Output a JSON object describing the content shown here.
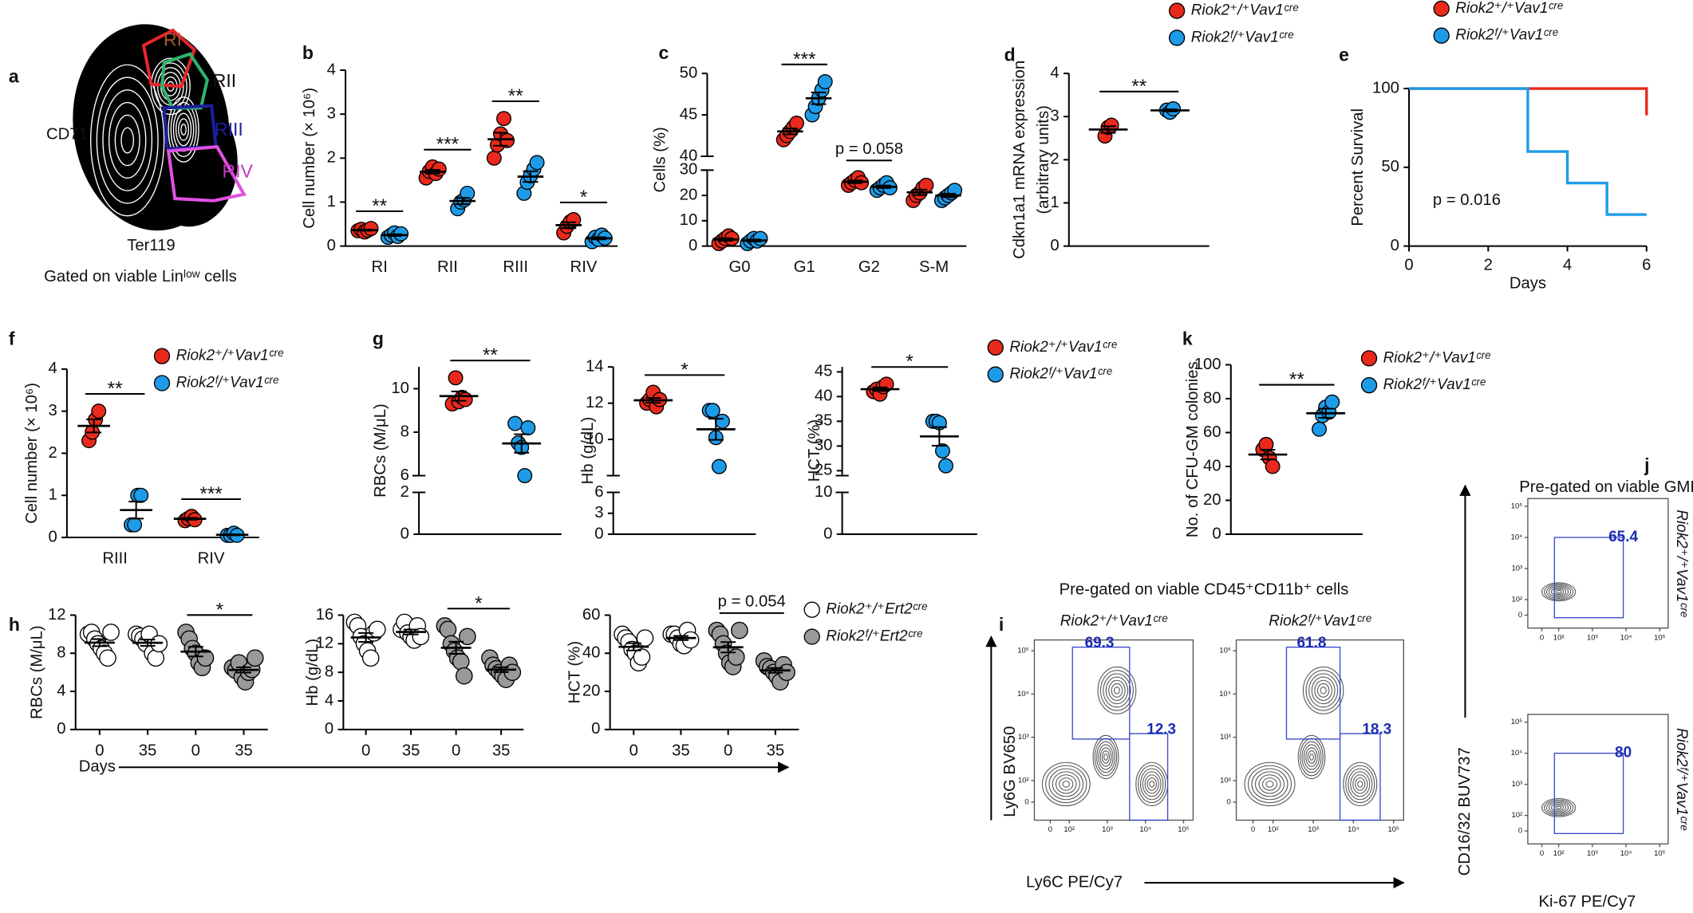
{
  "chart_data": [
    {
      "type": "gated-flow",
      "panel": "a",
      "ylabel": "CD71",
      "xlabel": "Ter119",
      "caption": "Gated on viable Linˡᵒʷ cells",
      "gates": [
        {
          "name": "RI",
          "color": "#e3262b",
          "label_color": "#a8572b"
        },
        {
          "name": "RII",
          "color": "#2fb36b",
          "label_color": "#111111"
        },
        {
          "name": "RIII",
          "color": "#1b1f9e",
          "label_color": "#1b1f9e"
        },
        {
          "name": "RIV",
          "color": "#e052e0",
          "label_color": "#c03ac0"
        }
      ]
    },
    {
      "type": "dot",
      "panel": "b",
      "ylabel": "Cell number (× 10⁶)",
      "categories": [
        "RI",
        "RII",
        "RIII",
        "RIV"
      ],
      "ylim": [
        0,
        4
      ],
      "yticks": [
        0,
        1,
        2,
        3,
        4
      ],
      "series": [
        {
          "color": "#e8291c",
          "values": [
            [
              0.35,
              0.38,
              0.32,
              0.36,
              0.4
            ],
            [
              1.55,
              1.7,
              1.8,
              1.65,
              1.75
            ],
            [
              2.0,
              2.3,
              2.55,
              2.9,
              2.4
            ],
            [
              0.3,
              0.45,
              0.55,
              0.6
            ]
          ]
        },
        {
          "color": "#1e9be8",
          "values": [
            [
              0.2,
              0.25,
              0.3,
              0.22,
              0.28
            ],
            [
              0.85,
              1.0,
              1.05,
              1.2
            ],
            [
              1.2,
              1.45,
              1.6,
              1.75,
              1.9
            ],
            [
              0.1,
              0.2,
              0.15,
              0.25,
              0.18
            ]
          ]
        }
      ],
      "annotations": [
        "**",
        "***",
        "**",
        "*"
      ]
    },
    {
      "type": "dot",
      "panel": "c",
      "ylabel": "Cells (%)",
      "categories": [
        "G0",
        "G1",
        "G2",
        "S-M"
      ],
      "ylim": [
        [
          0,
          30
        ],
        [
          40,
          50
        ]
      ],
      "yticks": [
        0,
        10,
        20,
        30,
        40,
        45,
        50
      ],
      "series": [
        {
          "color": "#e8291c",
          "values": [
            [
              1,
              2,
              3,
              4,
              3
            ],
            [
              42,
              42.5,
              43,
              43.5,
              44
            ],
            [
              24,
              25,
              26,
              27,
              25
            ],
            [
              18,
              20,
              21,
              23,
              24
            ]
          ]
        },
        {
          "color": "#1e9be8",
          "values": [
            [
              1,
              2,
              3,
              2,
              3
            ],
            [
              45,
              46,
              47,
              48,
              49
            ],
            [
              22,
              23,
              24,
              25,
              23
            ],
            [
              18,
              19,
              20,
              21,
              22
            ]
          ]
        }
      ],
      "annotations": [
        null,
        "***",
        "p = 0.058",
        null
      ]
    },
    {
      "type": "dot",
      "panel": "d",
      "ylabel": [
        "Cdkn1a1 mRNA expression",
        "(arbitrary units)"
      ],
      "categories": [
        null
      ],
      "ylim": [
        0,
        4
      ],
      "yticks": [
        0,
        1,
        2,
        3,
        4
      ],
      "series": [
        {
          "name": "Riok2⁺/⁺Vav1ᶜʳᵉ",
          "color": "#e8291c",
          "values": [
            [
              2.55,
              2.75,
              2.8
            ]
          ]
        },
        {
          "name": "Riok2ᶠ/⁺Vav1ᶜʳᵉ",
          "color": "#1e9be8",
          "values": [
            [
              3.15,
              3.1,
              3.18
            ]
          ]
        }
      ],
      "annotations": [
        "**"
      ],
      "legend": "top"
    },
    {
      "type": "survival",
      "panel": "e",
      "ylabel": "Percent Survival",
      "xlabel": "Days",
      "xlim": [
        0,
        6
      ],
      "xticks": [
        0,
        2,
        4,
        6
      ],
      "ylim": [
        0,
        100
      ],
      "yticks": [
        0,
        50,
        100
      ],
      "series": [
        {
          "name": "Riok2⁺/⁺Vav1ᶜʳᵉ",
          "color": "#e8291c",
          "x": [
            0,
            6
          ],
          "values": [
            100,
            83
          ]
        },
        {
          "name": "Riok2ᶠ/⁺Vav1ᶜʳᵉ",
          "color": "#1e9be8",
          "x": [
            0,
            3,
            4,
            5,
            6
          ],
          "values": [
            100,
            60,
            40,
            20,
            20
          ]
        }
      ],
      "annotation": "p = 0.016",
      "legend": "top"
    },
    {
      "type": "dot",
      "panel": "f",
      "ylabel": "Cell number (× 10⁶)",
      "categories": [
        "RIII",
        "RIV"
      ],
      "ylim": [
        0,
        4
      ],
      "yticks": [
        0,
        1,
        2,
        3,
        4
      ],
      "series": [
        {
          "name": "Riok2⁺/⁺Vav1ᶜʳᵉ",
          "color": "#e8291c",
          "values": [
            [
              2.3,
              2.5,
              2.8,
              3.0
            ],
            [
              0.4,
              0.45,
              0.5,
              0.42
            ]
          ]
        },
        {
          "name": "Riok2ᶠ/⁺Vav1ᶜʳᵉ",
          "color": "#1e9be8",
          "values": [
            [
              0.3,
              0.3,
              1.0,
              1.0
            ],
            [
              0.05,
              0.05,
              0.1,
              0.05
            ]
          ]
        }
      ],
      "annotations": [
        "**",
        "***"
      ],
      "legend": "top-right"
    },
    {
      "type": "dot",
      "panel": "g",
      "ylabel": "RBCs (M/μL)",
      "categories": [
        null
      ],
      "ylim": [
        [
          0,
          2
        ],
        [
          6,
          11
        ]
      ],
      "yticks": [
        0,
        2,
        6,
        8,
        10
      ],
      "series": [
        {
          "color": "#e8291c",
          "values": [
            [
              9.3,
              10.5,
              9.4,
              9.6,
              9.5
            ]
          ]
        },
        {
          "color": "#1e9be8",
          "values": [
            [
              8.4,
              7.5,
              7.3,
              6.0,
              8.2
            ]
          ]
        }
      ],
      "annotations": [
        "**"
      ]
    },
    {
      "type": "dot",
      "ylabel": "Hb (g/dL)",
      "categories": [
        null
      ],
      "ylim": [
        [
          0,
          6
        ],
        [
          8,
          14
        ]
      ],
      "yticks": [
        0,
        3,
        6,
        10,
        12,
        14
      ],
      "series": [
        {
          "color": "#e8291c",
          "values": [
            [
              12.0,
              12.2,
              12.6,
              11.8,
              12.2
            ]
          ]
        },
        {
          "color": "#1e9be8",
          "values": [
            [
              11.6,
              11.6,
              10.1,
              8.5,
              11.0
            ]
          ]
        }
      ],
      "annotations": [
        "*"
      ]
    },
    {
      "type": "dot",
      "ylabel": "HCT (%)",
      "categories": [
        null
      ],
      "ylim": [
        [
          0,
          10
        ],
        [
          24,
          46
        ]
      ],
      "yticks": [
        0,
        10,
        25,
        30,
        35,
        40,
        45
      ],
      "series": [
        {
          "name": "Riok2⁺/⁺Vav1ᶜʳᵉ",
          "color": "#e8291c",
          "values": [
            [
              41,
              41.5,
              40.5,
              42,
              42.5
            ]
          ]
        },
        {
          "name": "Riok2ᶠ/⁺Vav1ᶜʳᵉ",
          "color": "#1e9be8",
          "values": [
            [
              35,
              35,
              34.7,
              29,
              26
            ]
          ]
        }
      ],
      "annotations": [
        "*"
      ],
      "legend": "right"
    },
    {
      "type": "dot",
      "panel": "k",
      "ylabel": "No. of CFU-GM colonies",
      "categories": [
        null
      ],
      "ylim": [
        0,
        100
      ],
      "yticks": [
        0,
        20,
        40,
        60,
        80,
        100
      ],
      "series": [
        {
          "name": "Riok2⁺/⁺Vav1ᶜʳᵉ",
          "color": "#e8291c",
          "values": [
            [
              50,
              53,
              45,
              40
            ]
          ]
        },
        {
          "name": "Riok2ᶠ/⁺Vav1ᶜʳᵉ",
          "color": "#1e9be8",
          "values": [
            [
              62,
              70,
              75,
              72,
              78
            ]
          ]
        }
      ],
      "annotations": [
        "**"
      ],
      "legend": "right"
    },
    {
      "type": "dot",
      "panel": "h",
      "ylabel": "RBCs (M/μL)",
      "xlabel": "Days",
      "categories": [
        "0",
        "35",
        "0",
        "35"
      ],
      "ylim": [
        0,
        12
      ],
      "yticks": [
        0,
        4,
        8,
        12
      ],
      "series": [
        {
          "color": "#ffffff",
          "values": [
            [
              10,
              10.2,
              9.5,
              9,
              8.5,
              8,
              7.5,
              10.2
            ],
            [
              10,
              9.8,
              9.5,
              9,
              10,
              8,
              7.5,
              9
            ],
            null,
            null
          ]
        },
        {
          "color": "#999999",
          "values": [
            null,
            null,
            [
              10.2,
              9.5,
              8.5,
              8,
              7,
              6.5,
              7.5
            ],
            [
              6.5,
              6.2,
              7,
              5.5,
              5,
              6,
              6.3,
              7.5
            ]
          ]
        }
      ],
      "annotations": [
        null,
        "*"
      ]
    },
    {
      "type": "dot",
      "ylabel": "Hb (g/dL)",
      "categories": [
        "0",
        "35",
        "0",
        "35"
      ],
      "ylim": [
        0,
        16
      ],
      "yticks": [
        0,
        4,
        8,
        12,
        16
      ],
      "series": [
        {
          "color": "#ffffff",
          "values": [
            [
              15,
              14.5,
              13,
              12,
              11,
              10,
              13.5,
              14
            ],
            [
              14,
              15,
              13.5,
              13,
              12.5,
              14.5,
              13
            ],
            null,
            null
          ]
        },
        {
          "color": "#999999",
          "values": [
            null,
            null,
            [
              14.5,
              14,
              12,
              11,
              10,
              9.5,
              7.5,
              13
            ],
            [
              10,
              9,
              8.5,
              8,
              7.5,
              7,
              9,
              8
            ]
          ]
        }
      ],
      "annotations": [
        null,
        "*"
      ]
    },
    {
      "type": "dot",
      "ylabel": "HCT (%)",
      "categories": [
        "0",
        "35",
        "0",
        "35"
      ],
      "ylim": [
        0,
        60
      ],
      "yticks": [
        0,
        20,
        40,
        60
      ],
      "series": [
        {
          "name": "Riok2⁺/⁺Ert2ᶜʳᵉ",
          "color": "#ffffff",
          "values": [
            [
              50,
              48,
              46,
              42,
              40,
              35,
              38,
              48
            ],
            [
              50,
              50,
              48,
              45,
              44,
              52,
              47
            ],
            null,
            null
          ]
        },
        {
          "name": "Riok2ᶠ/⁺Ert2ᶜʳᵉ",
          "color": "#999999",
          "values": [
            null,
            null,
            [
              52,
              50,
              45,
              40,
              35,
              33,
              38,
              52
            ],
            [
              36,
              33,
              32,
              30,
              28,
              25,
              34,
              30
            ]
          ]
        }
      ],
      "annotations": [
        null,
        "p = 0.054"
      ],
      "legend": "right"
    },
    {
      "type": "flow",
      "panel": "i",
      "title": "Pre-gated on viable CD45⁺CD11b⁺ cells",
      "xlabel": "Ly6C PE/Cy7",
      "ylabel": "Ly6G BV650",
      "xticks": [
        0,
        {
          "value": 100,
          "label": "10²"
        },
        {
          "value": 1000,
          "label": "10³"
        },
        {
          "value": 10000,
          "label": "10⁴"
        },
        {
          "value": 100000,
          "label": "10⁵"
        }
      ],
      "yticks": [
        0,
        {
          "value": 100,
          "label": "10²"
        },
        {
          "value": 1000,
          "label": "10³"
        },
        {
          "value": 10000,
          "label": "10⁴"
        },
        {
          "value": 100000,
          "label": "10⁵"
        }
      ],
      "plots": [
        {
          "title": "Riok2⁺/⁺Vav1ᶜʳᵉ",
          "gates": [
            69.3,
            12.3
          ]
        },
        {
          "title": "Riok2ᶠ/⁺Vav1ᶜʳᵉ",
          "gates": [
            61.8,
            18.3
          ]
        }
      ]
    },
    {
      "type": "flow",
      "panel": "j",
      "title": "Pre-gated on viable GMPs",
      "xlabel": "Ki-67 PE/Cy7",
      "ylabel": "CD16/32 BUV737",
      "xticks": [
        0,
        {
          "value": 100,
          "label": "10²"
        },
        {
          "value": 1000,
          "label": "10³"
        },
        {
          "value": 10000,
          "label": "10⁴"
        },
        {
          "value": 100000,
          "label": "10⁵"
        }
      ],
      "yticks": [
        0,
        {
          "value": 100,
          "label": "10²"
        },
        {
          "value": 1000,
          "label": "10³"
        },
        {
          "value": 10000,
          "label": "10⁴"
        },
        {
          "value": 100000,
          "label": "10⁵"
        }
      ],
      "plots": [
        {
          "title": "Riok2⁺/⁺Vav1ᶜʳᵉ",
          "gates": [
            65.4
          ]
        },
        {
          "title": "Riok2ᶠ/⁺Vav1ᶜʳᵉ",
          "gates": [
            80
          ]
        }
      ]
    }
  ]
}
